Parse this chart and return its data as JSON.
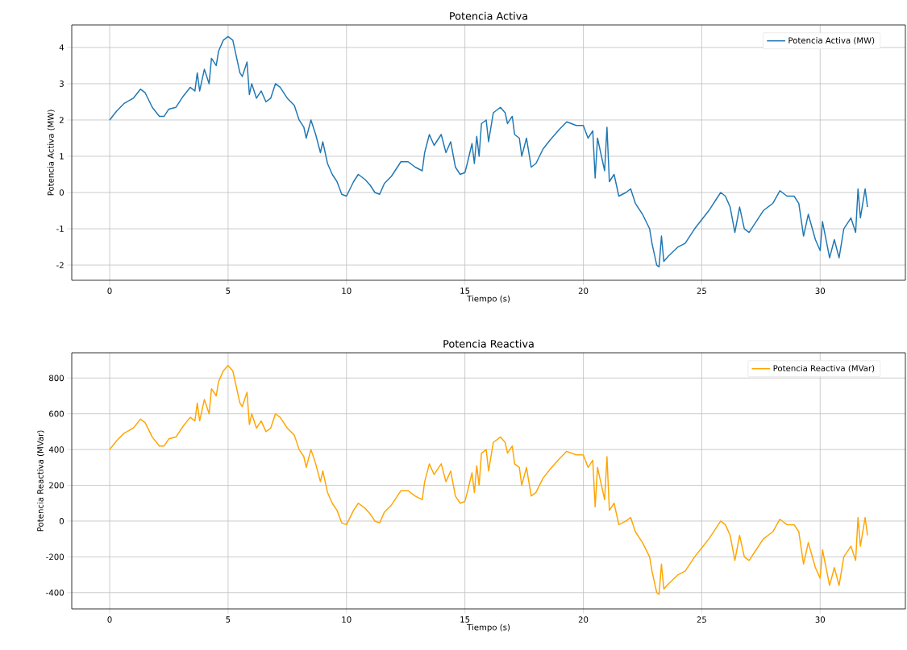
{
  "chart_data": [
    {
      "type": "line",
      "title": "Potencia Activa",
      "xlabel": "Tiempo (s)",
      "ylabel": "Potencia Activa (MW)",
      "x": [
        0,
        0.3,
        0.6,
        1.0,
        1.3,
        1.5,
        1.8,
        2.1,
        2.3,
        2.5,
        2.8,
        3.1,
        3.4,
        3.6,
        3.7,
        3.8,
        4.0,
        4.2,
        4.3,
        4.5,
        4.6,
        4.8,
        5.0,
        5.2,
        5.3,
        5.5,
        5.6,
        5.8,
        5.9,
        6.0,
        6.2,
        6.4,
        6.6,
        6.8,
        7.0,
        7.2,
        7.5,
        7.8,
        8.0,
        8.2,
        8.3,
        8.5,
        8.7,
        8.9,
        9.0,
        9.2,
        9.4,
        9.6,
        9.8,
        10.0,
        10.3,
        10.5,
        10.8,
        11.0,
        11.2,
        11.4,
        11.6,
        11.9,
        12.3,
        12.6,
        12.9,
        13.2,
        13.3,
        13.5,
        13.7,
        14.0,
        14.2,
        14.4,
        14.6,
        14.8,
        15.0,
        15.1,
        15.3,
        15.4,
        15.5,
        15.6,
        15.7,
        15.9,
        16.0,
        16.2,
        16.5,
        16.7,
        16.8,
        17.0,
        17.1,
        17.3,
        17.4,
        17.6,
        17.8,
        18.0,
        18.3,
        18.6,
        19.0,
        19.3,
        19.7,
        20.0,
        20.2,
        20.4,
        20.5,
        20.6,
        20.8,
        20.9,
        21.0,
        21.1,
        21.3,
        21.5,
        21.8,
        22.0,
        22.2,
        22.5,
        22.8,
        22.9,
        23.1,
        23.2,
        23.3,
        23.4,
        23.6,
        24.0,
        24.3,
        24.5,
        24.7,
        25.0,
        25.3,
        25.6,
        25.8,
        26.0,
        26.2,
        26.4,
        26.6,
        26.8,
        27.0,
        27.3,
        27.6,
        28.0,
        28.3,
        28.6,
        28.9,
        29.1,
        29.3,
        29.5,
        29.8,
        30.0,
        30.1,
        30.4,
        30.6,
        30.8,
        31.0,
        31.3,
        31.5,
        31.6,
        31.7,
        31.9,
        32.0
      ],
      "series": [
        {
          "name": "Potencia Activa (MW)",
          "color": "#1f77b4",
          "values": [
            2.0,
            2.25,
            2.45,
            2.6,
            2.85,
            2.75,
            2.35,
            2.1,
            2.1,
            2.3,
            2.35,
            2.65,
            2.9,
            2.8,
            3.3,
            2.8,
            3.4,
            3.0,
            3.7,
            3.5,
            3.9,
            4.2,
            4.3,
            4.2,
            3.9,
            3.3,
            3.2,
            3.6,
            2.7,
            3.0,
            2.6,
            2.8,
            2.5,
            2.6,
            3.0,
            2.9,
            2.6,
            2.4,
            2.0,
            1.8,
            1.5,
            2.0,
            1.6,
            1.1,
            1.4,
            0.8,
            0.5,
            0.3,
            -0.05,
            -0.1,
            0.3,
            0.5,
            0.35,
            0.2,
            0.0,
            -0.05,
            0.25,
            0.45,
            0.85,
            0.85,
            0.7,
            0.6,
            1.1,
            1.6,
            1.3,
            1.6,
            1.1,
            1.4,
            0.7,
            0.5,
            0.55,
            0.8,
            1.35,
            0.8,
            1.55,
            1.0,
            1.9,
            2.0,
            1.4,
            2.2,
            2.35,
            2.2,
            1.9,
            2.1,
            1.6,
            1.5,
            1.0,
            1.5,
            0.7,
            0.8,
            1.2,
            1.45,
            1.75,
            1.95,
            1.85,
            1.85,
            1.5,
            1.7,
            0.4,
            1.5,
            0.9,
            0.6,
            1.8,
            0.3,
            0.5,
            -0.1,
            0.0,
            0.1,
            -0.3,
            -0.6,
            -1.0,
            -1.4,
            -2.0,
            -2.05,
            -1.2,
            -1.9,
            -1.75,
            -1.5,
            -1.4,
            -1.2,
            -1.0,
            -0.75,
            -0.5,
            -0.2,
            0.0,
            -0.1,
            -0.4,
            -1.1,
            -0.4,
            -1.0,
            -1.1,
            -0.8,
            -0.5,
            -0.3,
            0.05,
            -0.1,
            -0.1,
            -0.3,
            -1.2,
            -0.6,
            -1.3,
            -1.6,
            -0.8,
            -1.8,
            -1.3,
            -1.8,
            -1.0,
            -0.7,
            -1.1,
            0.1,
            -0.7,
            0.1,
            -0.4
          ]
        }
      ],
      "xlim": [
        -1.6,
        33.6
      ],
      "xticks": [
        0,
        5,
        10,
        15,
        20,
        25,
        30
      ],
      "ylim": [
        -2.42,
        4.62
      ],
      "yticks": [
        -2,
        -1,
        0,
        1,
        2,
        3,
        4
      ],
      "grid": true,
      "legend": "top right",
      "line_style": "solid"
    },
    {
      "type": "line",
      "title": "Potencia Reactiva",
      "xlabel": "Tiempo (s)",
      "ylabel": "Potencia Reactiva (MVar)",
      "x": [
        0,
        0.3,
        0.6,
        1.0,
        1.3,
        1.5,
        1.8,
        2.1,
        2.3,
        2.5,
        2.8,
        3.1,
        3.4,
        3.6,
        3.7,
        3.8,
        4.0,
        4.2,
        4.3,
        4.5,
        4.6,
        4.8,
        5.0,
        5.2,
        5.3,
        5.5,
        5.6,
        5.8,
        5.9,
        6.0,
        6.2,
        6.4,
        6.6,
        6.8,
        7.0,
        7.2,
        7.5,
        7.8,
        8.0,
        8.2,
        8.3,
        8.5,
        8.7,
        8.9,
        9.0,
        9.2,
        9.4,
        9.6,
        9.8,
        10.0,
        10.3,
        10.5,
        10.8,
        11.0,
        11.2,
        11.4,
        11.6,
        11.9,
        12.3,
        12.6,
        12.9,
        13.2,
        13.3,
        13.5,
        13.7,
        14.0,
        14.2,
        14.4,
        14.6,
        14.8,
        15.0,
        15.1,
        15.3,
        15.4,
        15.5,
        15.6,
        15.7,
        15.9,
        16.0,
        16.2,
        16.5,
        16.7,
        16.8,
        17.0,
        17.1,
        17.3,
        17.4,
        17.6,
        17.8,
        18.0,
        18.3,
        18.6,
        19.0,
        19.3,
        19.7,
        20.0,
        20.2,
        20.4,
        20.5,
        20.6,
        20.8,
        20.9,
        21.0,
        21.1,
        21.3,
        21.5,
        21.8,
        22.0,
        22.2,
        22.5,
        22.8,
        22.9,
        23.1,
        23.2,
        23.3,
        23.4,
        23.6,
        24.0,
        24.3,
        24.5,
        24.7,
        25.0,
        25.3,
        25.6,
        25.8,
        26.0,
        26.2,
        26.4,
        26.6,
        26.8,
        27.0,
        27.3,
        27.6,
        28.0,
        28.3,
        28.6,
        28.9,
        29.1,
        29.3,
        29.5,
        29.8,
        30.0,
        30.1,
        30.4,
        30.6,
        30.8,
        31.0,
        31.3,
        31.5,
        31.6,
        31.7,
        31.9,
        32.0
      ],
      "series": [
        {
          "name": "Potencia Reactiva (MVar)",
          "color": "#ffa500",
          "values": [
            400,
            450,
            490,
            520,
            570,
            550,
            470,
            420,
            420,
            460,
            470,
            530,
            580,
            560,
            660,
            560,
            680,
            600,
            740,
            700,
            780,
            840,
            870,
            840,
            780,
            660,
            640,
            720,
            540,
            600,
            520,
            560,
            500,
            520,
            600,
            580,
            520,
            480,
            400,
            360,
            300,
            400,
            320,
            220,
            280,
            160,
            100,
            60,
            -10,
            -20,
            60,
            100,
            70,
            40,
            0,
            -10,
            50,
            90,
            170,
            170,
            140,
            120,
            220,
            320,
            260,
            320,
            220,
            280,
            140,
            100,
            110,
            160,
            270,
            160,
            310,
            200,
            380,
            400,
            280,
            440,
            470,
            440,
            380,
            420,
            320,
            300,
            200,
            300,
            140,
            160,
            240,
            290,
            350,
            390,
            370,
            370,
            300,
            340,
            80,
            300,
            180,
            120,
            360,
            60,
            100,
            -20,
            0,
            20,
            -60,
            -120,
            -200,
            -280,
            -400,
            -410,
            -240,
            -380,
            -350,
            -300,
            -280,
            -240,
            -200,
            -150,
            -100,
            -40,
            0,
            -20,
            -80,
            -220,
            -80,
            -200,
            -220,
            -160,
            -100,
            -60,
            10,
            -20,
            -20,
            -60,
            -240,
            -120,
            -260,
            -320,
            -160,
            -360,
            -260,
            -360,
            -200,
            -140,
            -220,
            20,
            -140,
            20,
            -80
          ]
        }
      ],
      "xlim": [
        -1.6,
        33.6
      ],
      "xticks": [
        0,
        5,
        10,
        15,
        20,
        25,
        30
      ],
      "ylim": [
        -491,
        941
      ],
      "yticks": [
        -400,
        -200,
        0,
        200,
        400,
        600,
        800
      ],
      "grid": true,
      "legend": "top right",
      "line_style": "solid"
    }
  ]
}
